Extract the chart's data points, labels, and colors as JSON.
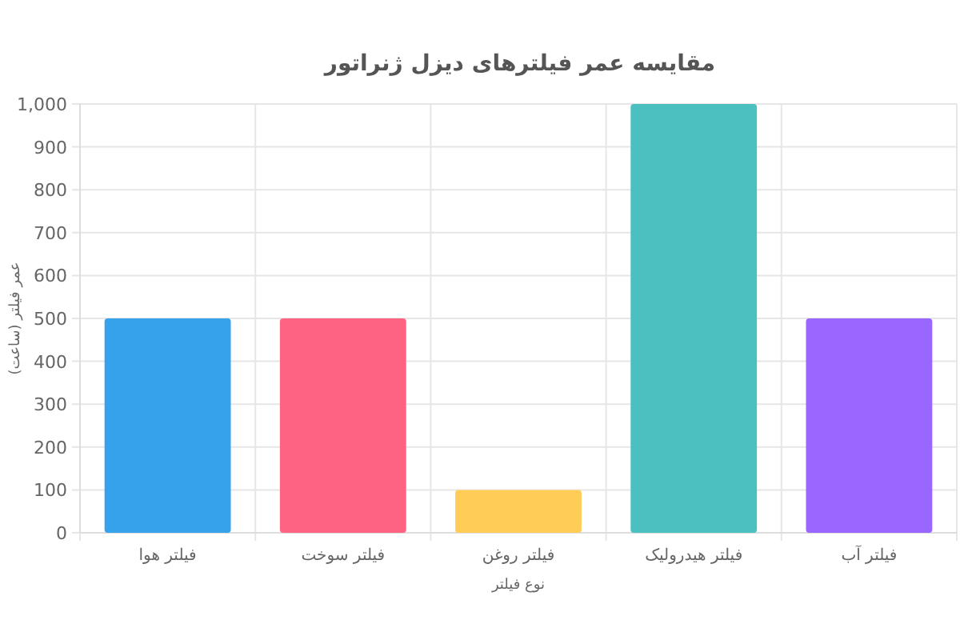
{
  "chart_data": {
    "type": "bar",
    "title": "مقایسه عمر فیلترهای دیزل ژنراتور",
    "categories": [
      "فیلتر هوا",
      "فیلتر سوخت",
      "فیلتر روغن",
      "فیلتر هیدرولیک",
      "فیلتر آب"
    ],
    "values": [
      500,
      500,
      100,
      1000,
      500
    ],
    "colors": [
      "#36a2eb",
      "#ff6384",
      "#ffcd56",
      "#4bc0c0",
      "#9966ff"
    ],
    "xlabel": "نوع فیلتر",
    "ylabel": "عمر فیلتر (ساعت)",
    "ylim": [
      0,
      1000
    ],
    "yticks": [
      0,
      100,
      200,
      300,
      400,
      500,
      600,
      700,
      800,
      900,
      {
        "value": 1000,
        "label": "1,000"
      }
    ],
    "grid": true
  }
}
